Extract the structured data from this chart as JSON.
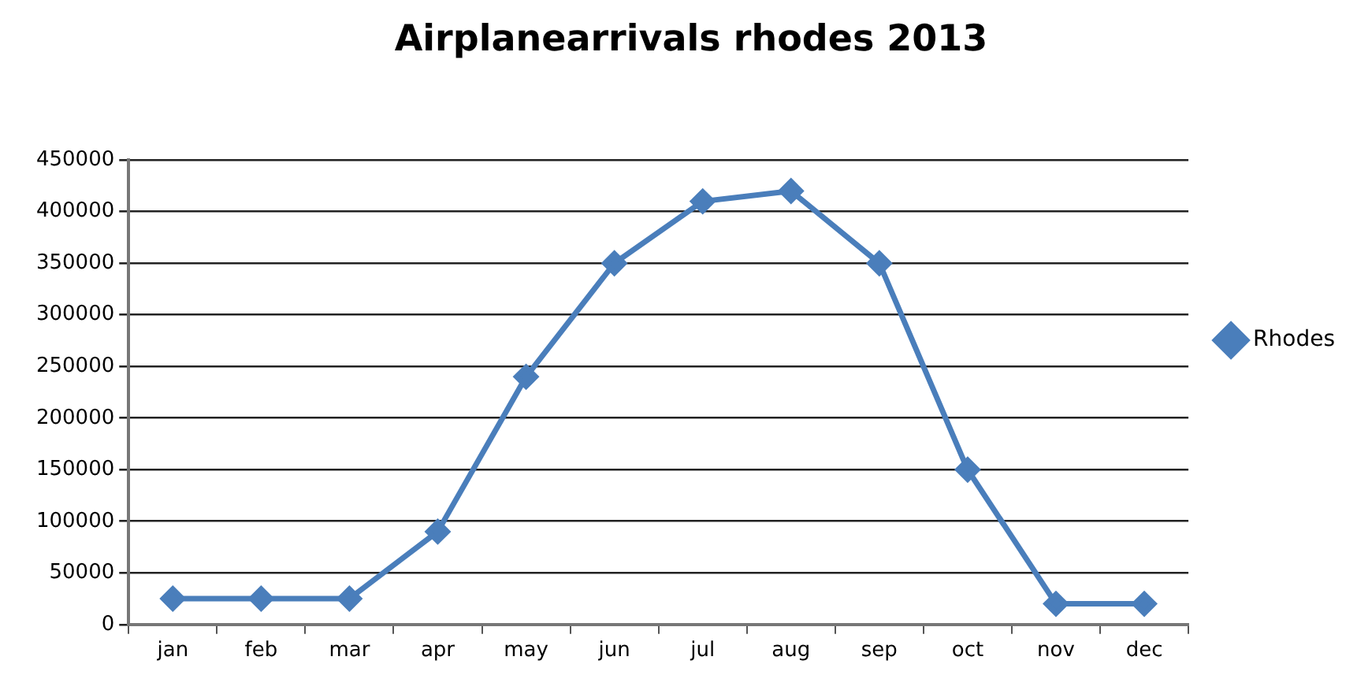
{
  "chart_data": {
    "type": "line",
    "title": "Airplanearrivals rhodes 2013",
    "categories": [
      "jan",
      "feb",
      "mar",
      "apr",
      "may",
      "jun",
      "jul",
      "aug",
      "sep",
      "oct",
      "nov",
      "dec"
    ],
    "series": [
      {
        "name": "Rhodes",
        "color": "#4a7ebb",
        "values": [
          25000,
          25000,
          25000,
          90000,
          240000,
          350000,
          410000,
          420000,
          350000,
          150000,
          20000,
          20000
        ]
      }
    ],
    "ylim": [
      0,
      450000
    ],
    "yticks": [
      0,
      50000,
      100000,
      150000,
      200000,
      250000,
      300000,
      350000,
      400000,
      450000
    ],
    "grid": "y",
    "legend": "right",
    "marker": "diamond",
    "line_style": "solid"
  }
}
